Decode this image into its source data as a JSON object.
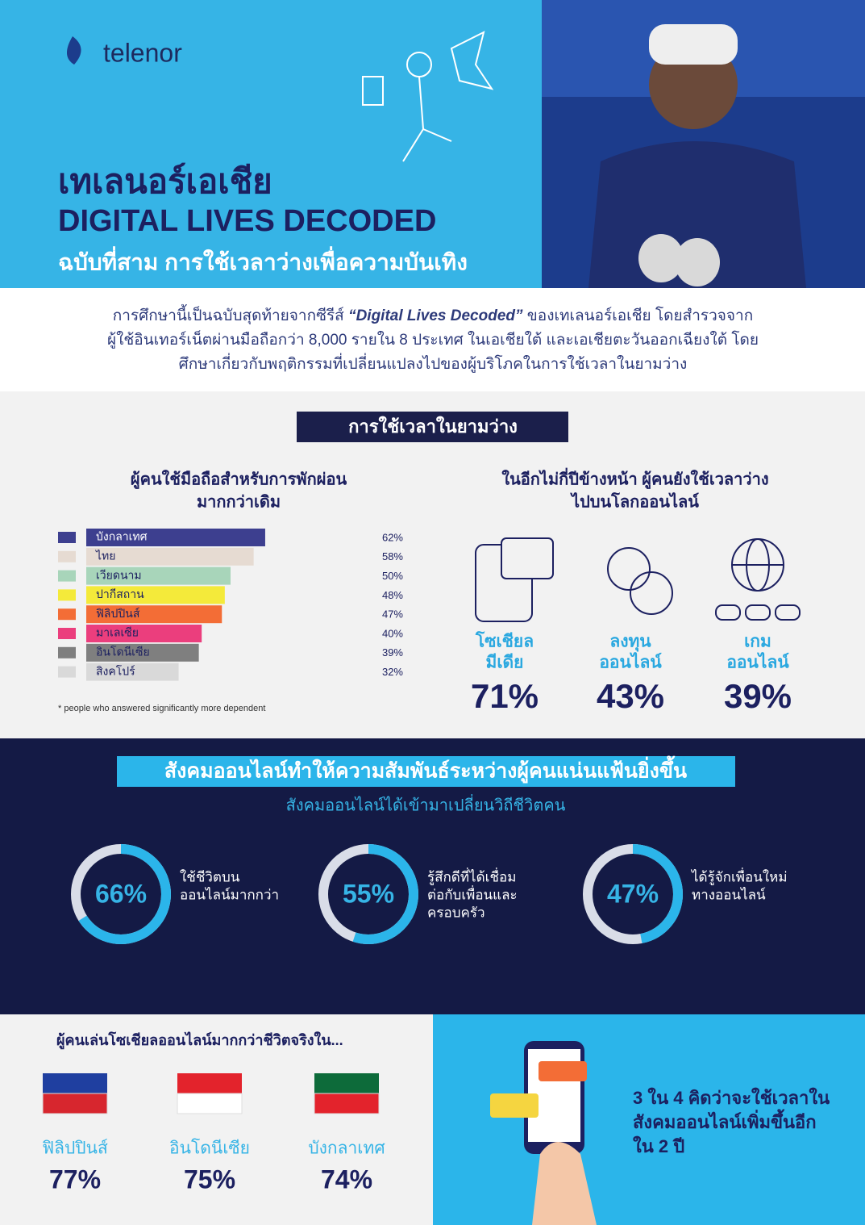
{
  "header": {
    "logo": "telenor",
    "title_thai": "เทเลนอร์เอเชีย",
    "title_en": "DIGITAL LIVES DECODED",
    "subtitle": "ฉบับที่สาม การใช้เวลาว่างเพื่อความบันเทิง"
  },
  "intro": {
    "line1": [
      "การศึกษานี้เป็นฉบับสุดท้ายจากซีรีส์ ",
      "“Digital Lives Decoded”",
      " ของเทเลนอร์เอเชีย โดยสำรวจจาก"
    ],
    "line2": "ผู้ใช้อินเทอร์เน็ตผ่านมือถือกว่า 8,000 รายใน 8 ประเทศ ในเอเชียใต้ และเอเชียตะวันออกเฉียงใต้ โดย",
    "line3": "ศึกษาเกี่ยวกับพฤติกรรมที่เปลี่ยนแปลงไปของผู้บริโภคในการใช้เวลาในยามว่าง"
  },
  "leisure": {
    "heading": "การใช้เวลาในยามว่าง",
    "phone_chart": {
      "type": "bar",
      "title_lines": [
        "ผู้คนใช้มือถือสำหรับการพักผ่อน",
        "มากกว่าเดิม"
      ],
      "categories": [
        "บังกลาเทศ",
        "ไทย",
        "เวียดนาม",
        "ปากีสถาน",
        "ฟิลิปปินส์",
        "มาเลเซีย",
        "อินโดนีเซีย",
        "สิงคโปร์"
      ],
      "values": [
        62,
        58,
        50,
        48,
        47,
        40,
        39,
        32
      ],
      "value_labels": [
        "62%",
        "58%",
        "50%",
        "48%",
        "47%",
        "40%",
        "39%",
        "32%"
      ],
      "colors": [
        "#3d3f8f",
        "#e6dbd2",
        "#a8d5ba",
        "#f4ea3a",
        "#f36d36",
        "#eb3e7d",
        "#7f7f7f",
        "#d9d9d9"
      ],
      "note": "* people who answered significantly more dependent"
    },
    "online": {
      "title_lines": [
        "ในอีกไม่กี่ปีข้างหน้า ผู้คนยังใช้เวลาว่าง",
        "ไปบนโลกออนไลน์"
      ],
      "items": [
        {
          "label_lines": [
            "โซเชียล",
            "มีเดีย"
          ],
          "value": "71%"
        },
        {
          "label_lines": [
            "ลงทุน",
            "ออนไลน์"
          ],
          "value": "43%"
        },
        {
          "label_lines": [
            "เกม",
            "ออนไลน์"
          ],
          "value": "39%"
        }
      ]
    }
  },
  "social": {
    "banner": "สังคมออนไลน์ทำให้ความสัมพันธ์ระหว่างผู้คนแน่นแฟ้นยิ่งขึ้น",
    "subtitle": "สังคมออนไลน์ได้เข้ามาเปลี่ยนวิถีชีวิตคน",
    "rings": [
      {
        "value": 66,
        "value_label": "66%",
        "text_lines": [
          "ใช้ชีวิตบน",
          "ออนไลน์มากกว่า"
        ]
      },
      {
        "value": 55,
        "value_label": "55%",
        "text_lines": [
          "รู้สึกดีที่ได้เชื่อม",
          "ต่อกับเพื่อนและ",
          "ครอบครัว"
        ]
      },
      {
        "value": 47,
        "value_label": "47%",
        "text_lines": [
          "ได้รู้จักเพื่อนใหม่",
          "ทางออนไลน์"
        ]
      }
    ]
  },
  "bottom": {
    "title": "ผู้คนเล่นโซเชียลออนไลน์มากกว่าชีวิตจริงใน...",
    "countries": [
      {
        "name": "ฟิลิปปินส์",
        "value": "77%"
      },
      {
        "name": "อินโดนีเซีย",
        "value": "75%"
      },
      {
        "name": "บังกลาเทศ",
        "value": "74%"
      }
    ],
    "right_lines": [
      "3 ใน 4 คิดว่าจะใช้เวลาใน",
      "สังคมออนไลน์เพิ่มขึ้นอีก",
      "ใน 2 ปี"
    ]
  }
}
